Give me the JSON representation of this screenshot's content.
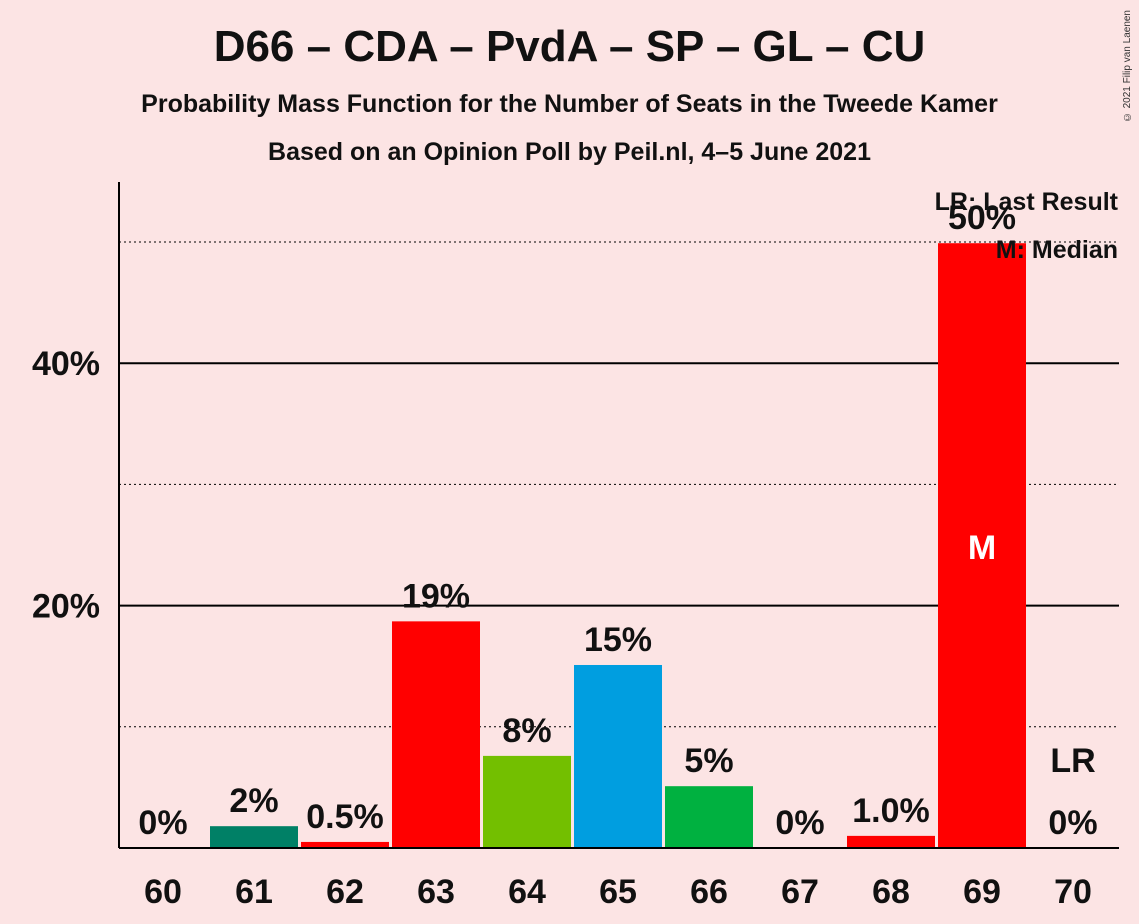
{
  "header": {
    "title": "D66 – CDA – PvdA – SP – GL – CU",
    "subtitle": "Probability Mass Function for the Number of Seats in the Tweede Kamer",
    "source": "Based on an Opinion Poll by Peil.nl, 4–5 June 2021",
    "copyright": "© 2021 Filip van Laenen"
  },
  "legend": {
    "last_result": "LR: Last Result",
    "median": "M: Median"
  },
  "chart_data": {
    "type": "bar",
    "categories": [
      "60",
      "61",
      "62",
      "63",
      "64",
      "65",
      "66",
      "67",
      "68",
      "69",
      "70"
    ],
    "values": [
      0,
      1.8,
      0.5,
      18.7,
      7.6,
      15.1,
      5.1,
      0,
      1.0,
      49.9,
      0
    ],
    "data_labels": [
      "0%",
      "2%",
      "0.5%",
      "19%",
      "8%",
      "15%",
      "5%",
      "0%",
      "1.0%",
      "50%",
      "0%"
    ],
    "colors": [
      "#ff0000",
      "#008066",
      "#ff0000",
      "#ff0000",
      "#73bf00",
      "#009ee0",
      "#00b140",
      "#ff0000",
      "#ff0000",
      "#ff0000",
      "#ff0000"
    ],
    "ylim": [
      0,
      55
    ],
    "yticks": [
      {
        "value": 20,
        "label": "20%"
      },
      {
        "value": 40,
        "label": "40%"
      }
    ],
    "minor_gridlines": [
      10,
      30,
      50
    ],
    "median_category": "69",
    "median_marker": "M",
    "last_result_category": "70",
    "last_result_marker": "LR",
    "legend_position": "top-right"
  }
}
